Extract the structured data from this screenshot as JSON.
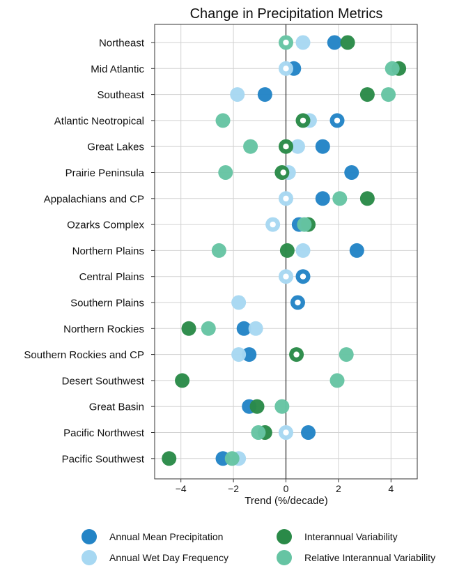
{
  "chart_data": {
    "type": "scatter",
    "title": "Change in Precipitation Metrics",
    "xlabel": "Trend (%/decade)",
    "ylabel": "",
    "xlim": [
      -5,
      5
    ],
    "xticks": [
      -4,
      -2,
      0,
      2,
      4
    ],
    "xtick_labels": [
      "−4",
      "−2",
      "0",
      "2",
      "4"
    ],
    "grid": true,
    "legend_position": "bottom",
    "categories": [
      "Northeast",
      "Mid Atlantic",
      "Southeast",
      "Atlantic Neotropical",
      "Great Lakes",
      "Prairie Peninsula",
      "Appalachians and CP",
      "Ozarks Complex",
      "Northern Plains",
      "Central Plains",
      "Southern Plains",
      "Northern Rockies",
      "Southern Rockies and CP",
      "Desert Southwest",
      "Great Basin",
      "Pacific Northwest",
      "Pacific Southwest"
    ],
    "series": [
      {
        "name": "Annual Mean Precipitation",
        "color": "#2384c6",
        "values": [
          1.85,
          0.3,
          -0.8,
          1.95,
          1.4,
          2.5,
          1.4,
          0.5,
          2.7,
          0.65,
          0.45,
          -1.6,
          -1.4,
          null,
          -1.4,
          0.85,
          -2.4
        ]
      },
      {
        "name": "Annual Wet Day Frequency",
        "color": "#a7d8f2",
        "values": [
          0.65,
          0.0,
          -1.85,
          0.9,
          0.45,
          0.1,
          0.0,
          -0.5,
          0.65,
          0.0,
          -1.8,
          -1.15,
          -1.8,
          null,
          null,
          0.0,
          -1.8
        ]
      },
      {
        "name": "Interannual Variability",
        "color": "#2a8a48",
        "values": [
          2.35,
          4.3,
          3.1,
          0.65,
          0.0,
          -0.15,
          3.1,
          0.85,
          0.05,
          null,
          null,
          -3.7,
          0.4,
          -3.95,
          -1.1,
          -0.8,
          -4.45
        ]
      },
      {
        "name": "Relative Interannual Variability",
        "color": "#66c4a3",
        "values": [
          0.0,
          4.05,
          3.9,
          -2.4,
          -1.35,
          -2.3,
          2.05,
          0.7,
          -2.55,
          null,
          null,
          -2.95,
          2.3,
          1.95,
          -0.15,
          -1.05,
          -2.05
        ]
      }
    ],
    "hollow_markers": [
      {
        "category": "Northeast",
        "x": 0.0
      },
      {
        "category": "Mid Atlantic",
        "x": 0.0
      },
      {
        "category": "Atlantic Neotropical",
        "x": 0.65
      },
      {
        "category": "Atlantic Neotropical",
        "x": 1.95
      },
      {
        "category": "Great Lakes",
        "x": 0.0
      },
      {
        "category": "Prairie Peninsula",
        "x": -0.1
      },
      {
        "category": "Appalachians and CP",
        "x": 0.0
      },
      {
        "category": "Ozarks Complex",
        "x": -0.5
      },
      {
        "category": "Central Plains",
        "x": 0.0
      },
      {
        "category": "Central Plains",
        "x": 0.65
      },
      {
        "category": "Southern Plains",
        "x": 0.45
      },
      {
        "category": "Southern Rockies and CP",
        "x": 0.4
      },
      {
        "category": "Pacific Northwest",
        "x": 0.0
      }
    ]
  }
}
